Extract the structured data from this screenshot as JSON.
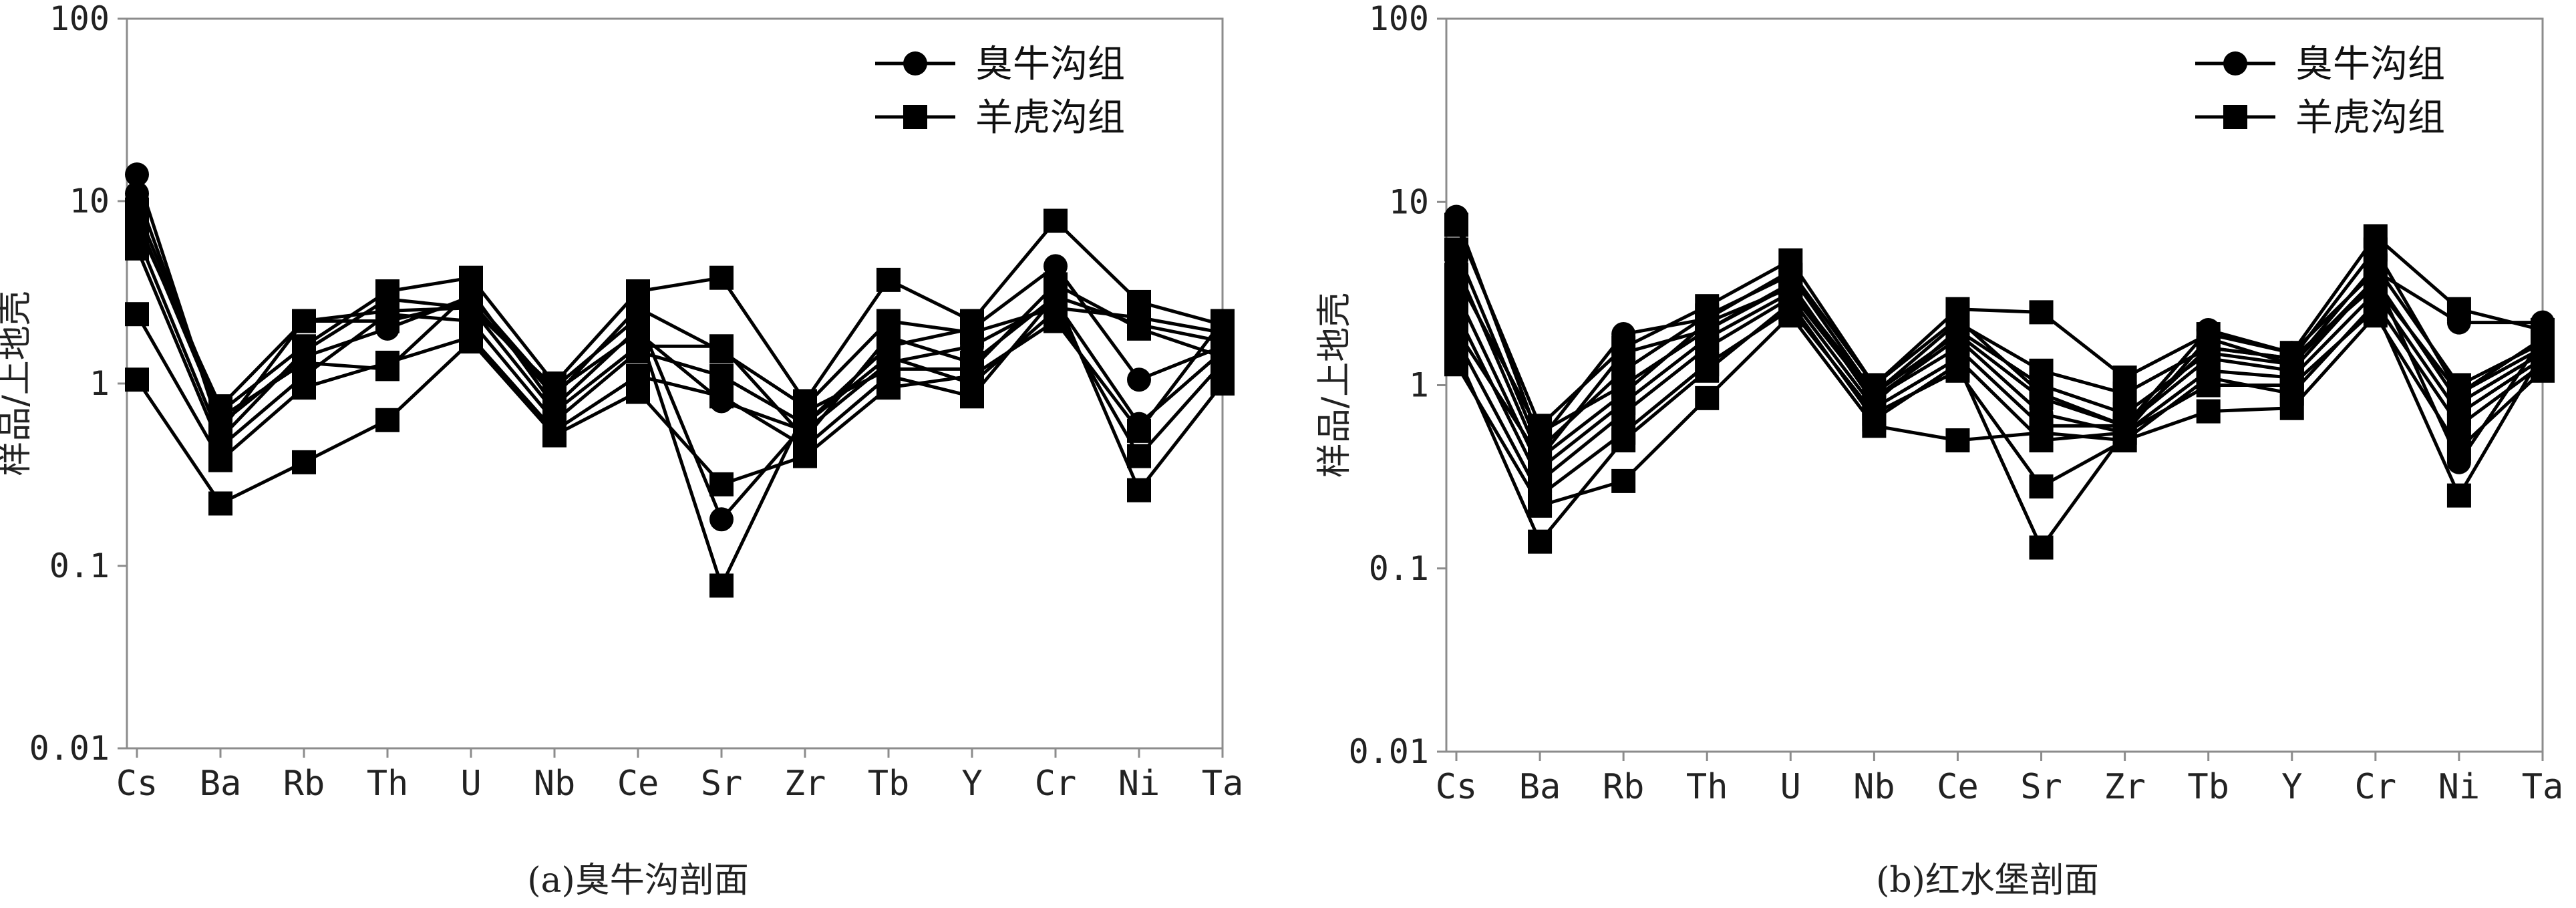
{
  "chart_data": [
    {
      "type": "line",
      "caption": "(a)臭牛沟剖面",
      "ylabel": "样品/上地壳",
      "yscale": "log",
      "ylim": [
        0.01,
        100
      ],
      "yticks": [
        "0.01",
        "0.1",
        "1",
        "10",
        "100"
      ],
      "categories": [
        "Cs",
        "Ba",
        "Rb",
        "Th",
        "U",
        "Nb",
        "Ce",
        "Sr",
        "Zr",
        "Tb",
        "Y",
        "Cr",
        "Ni",
        "Ta"
      ],
      "legend": [
        {
          "name": "臭牛沟组",
          "marker": "circle"
        },
        {
          "name": "羊虎沟组",
          "marker": "square"
        }
      ],
      "legend_position": "top-right",
      "series": [
        {
          "marker": "circle",
          "values": [
            14.0,
            0.55,
            2.2,
            2.5,
            2.6,
            0.95,
            2.3,
            0.18,
            0.6,
            1.6,
            2.0,
            4.4,
            1.05,
            1.6
          ]
        },
        {
          "marker": "circle",
          "values": [
            11.0,
            0.6,
            1.4,
            2.0,
            3.0,
            0.9,
            1.9,
            0.8,
            0.55,
            1.3,
            1.6,
            2.8,
            0.6,
            1.5
          ]
        },
        {
          "marker": "square",
          "values": [
            9.0,
            0.7,
            1.6,
            3.2,
            3.8,
            1.0,
            3.2,
            3.8,
            0.8,
            3.7,
            2.2,
            7.8,
            2.8,
            2.1
          ]
        },
        {
          "marker": "square",
          "values": [
            7.5,
            0.75,
            2.2,
            2.2,
            2.8,
            0.85,
            2.6,
            1.5,
            0.75,
            2.2,
            1.9,
            2.6,
            2.3,
            1.9
          ]
        },
        {
          "marker": "square",
          "values": [
            6.5,
            0.5,
            1.5,
            2.9,
            2.6,
            0.7,
            1.6,
            1.6,
            0.5,
            1.8,
            1.3,
            3.0,
            2.1,
            1.7
          ]
        },
        {
          "marker": "square",
          "values": [
            5.5,
            0.45,
            1.1,
            2.4,
            2.2,
            0.62,
            1.5,
            1.1,
            0.6,
            1.4,
            1.0,
            2.5,
            0.4,
            1.3
          ]
        },
        {
          "marker": "square",
          "values": [
            2.4,
            0.38,
            0.95,
            1.3,
            1.8,
            0.55,
            1.1,
            0.85,
            0.45,
            1.1,
            0.85,
            3.0,
            0.26,
            1.0
          ]
        },
        {
          "marker": "square",
          "values": [
            1.05,
            0.22,
            0.37,
            0.63,
            1.7,
            0.52,
            0.9,
            0.28,
            0.4,
            0.95,
            1.1,
            2.2,
            0.55,
            2.2
          ]
        },
        {
          "marker": "square",
          "values": [
            8.0,
            0.65,
            1.3,
            1.2,
            3.2,
            0.75,
            2.0,
            0.078,
            0.7,
            1.2,
            1.2,
            3.5,
            2.0,
            1.4
          ]
        }
      ]
    },
    {
      "type": "line",
      "caption": "(b)红水堡剖面",
      "ylabel": "样品/上地壳",
      "yscale": "log",
      "ylim": [
        0.01,
        100
      ],
      "yticks": [
        "0.01",
        "0.1",
        "1",
        "10",
        "100"
      ],
      "categories": [
        "Cs",
        "Ba",
        "Rb",
        "Th",
        "U",
        "Nb",
        "Ce",
        "Sr",
        "Zr",
        "Tb",
        "Y",
        "Cr",
        "Ni",
        "Ta"
      ],
      "legend": [
        {
          "name": "臭牛沟组",
          "marker": "circle"
        },
        {
          "name": "羊虎沟组",
          "marker": "square"
        }
      ],
      "legend_position": "top-right",
      "series": [
        {
          "marker": "circle",
          "values": [
            8.3,
            0.5,
            1.9,
            2.3,
            4.2,
            1.0,
            2.3,
            0.9,
            0.6,
            2.0,
            1.5,
            4.2,
            2.2,
            2.2
          ]
        },
        {
          "marker": "circle",
          "values": [
            4.5,
            0.4,
            1.5,
            2.0,
            3.5,
            0.85,
            1.8,
            0.7,
            0.55,
            1.8,
            1.3,
            3.8,
            0.38,
            1.8
          ]
        },
        {
          "marker": "square",
          "values": [
            7.5,
            0.6,
            1.6,
            2.7,
            4.8,
            1.0,
            2.6,
            2.5,
            1.1,
            1.9,
            1.5,
            6.5,
            2.6,
            2.0
          ]
        },
        {
          "marker": "square",
          "values": [
            5.5,
            0.45,
            1.2,
            2.4,
            4.0,
            0.9,
            2.2,
            1.2,
            0.9,
            1.6,
            1.4,
            5.5,
            0.9,
            1.8
          ]
        },
        {
          "marker": "square",
          "values": [
            4.0,
            0.55,
            1.0,
            2.0,
            3.6,
            0.8,
            2.0,
            1.0,
            0.7,
            1.5,
            1.3,
            4.5,
            1.0,
            1.7
          ]
        },
        {
          "marker": "square",
          "values": [
            3.2,
            0.35,
            0.8,
            1.8,
            3.2,
            0.85,
            1.6,
            0.6,
            0.6,
            1.4,
            1.2,
            3.8,
            0.8,
            1.5
          ]
        },
        {
          "marker": "square",
          "values": [
            2.5,
            0.3,
            0.7,
            1.6,
            3.0,
            0.75,
            1.4,
            0.5,
            0.55,
            1.2,
            1.1,
            3.2,
            0.7,
            1.4
          ]
        },
        {
          "marker": "square",
          "values": [
            1.8,
            0.25,
            0.55,
            1.3,
            2.6,
            0.7,
            1.2,
            0.28,
            0.5,
            1.1,
            0.9,
            2.8,
            0.6,
            1.3
          ]
        },
        {
          "marker": "square",
          "values": [
            1.3,
            0.22,
            0.3,
            0.85,
            2.4,
            0.6,
            0.5,
            0.55,
            0.5,
            0.72,
            0.75,
            2.4,
            0.45,
            1.2
          ]
        },
        {
          "marker": "square",
          "values": [
            1.5,
            0.14,
            0.5,
            1.2,
            2.8,
            0.65,
            1.3,
            0.13,
            0.55,
            1.0,
            1.0,
            2.6,
            0.25,
            1.5
          ]
        },
        {
          "marker": "square",
          "values": [
            2.0,
            0.4,
            0.9,
            2.2,
            3.4,
            0.9,
            1.9,
            0.85,
            0.6,
            1.6,
            1.4,
            3.5,
            0.9,
            1.6
          ]
        }
      ]
    }
  ]
}
